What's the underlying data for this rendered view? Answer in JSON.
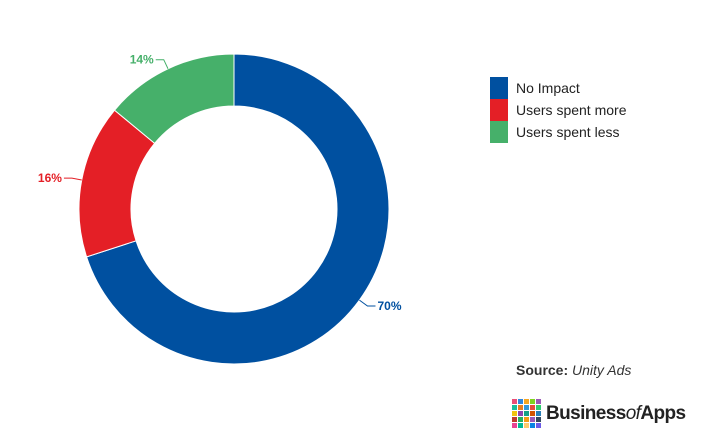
{
  "chart_data": {
    "type": "pie",
    "donut": true,
    "slices": [
      {
        "label": "No Impact",
        "value": 70,
        "display": "70%",
        "color": "#0050a0"
      },
      {
        "label": "Users spent more",
        "value": 16,
        "display": "16%",
        "color": "#e41f26"
      },
      {
        "label": "Users spent less",
        "value": 14,
        "display": "14%",
        "color": "#46b06a"
      }
    ],
    "legend_position": "top-right"
  },
  "source": {
    "key": "Source:",
    "value": "Unity Ads"
  },
  "brand": {
    "name_part1": "Business",
    "name_part2": "of",
    "name_part3": "Apps",
    "grid_colors": [
      "#e94e77",
      "#2e86de",
      "#f5a623",
      "#7ed321",
      "#9b59b6",
      "#1abc9c",
      "#e67e22",
      "#3498db",
      "#e74c3c",
      "#2ecc71",
      "#f1c40f",
      "#8e44ad",
      "#16a085",
      "#d35400",
      "#2980b9",
      "#c0392b",
      "#27ae60",
      "#f39c12",
      "#9b59b6",
      "#34495e",
      "#e84393",
      "#00b894",
      "#fdcb6e",
      "#0984e3",
      "#6c5ce7"
    ]
  }
}
